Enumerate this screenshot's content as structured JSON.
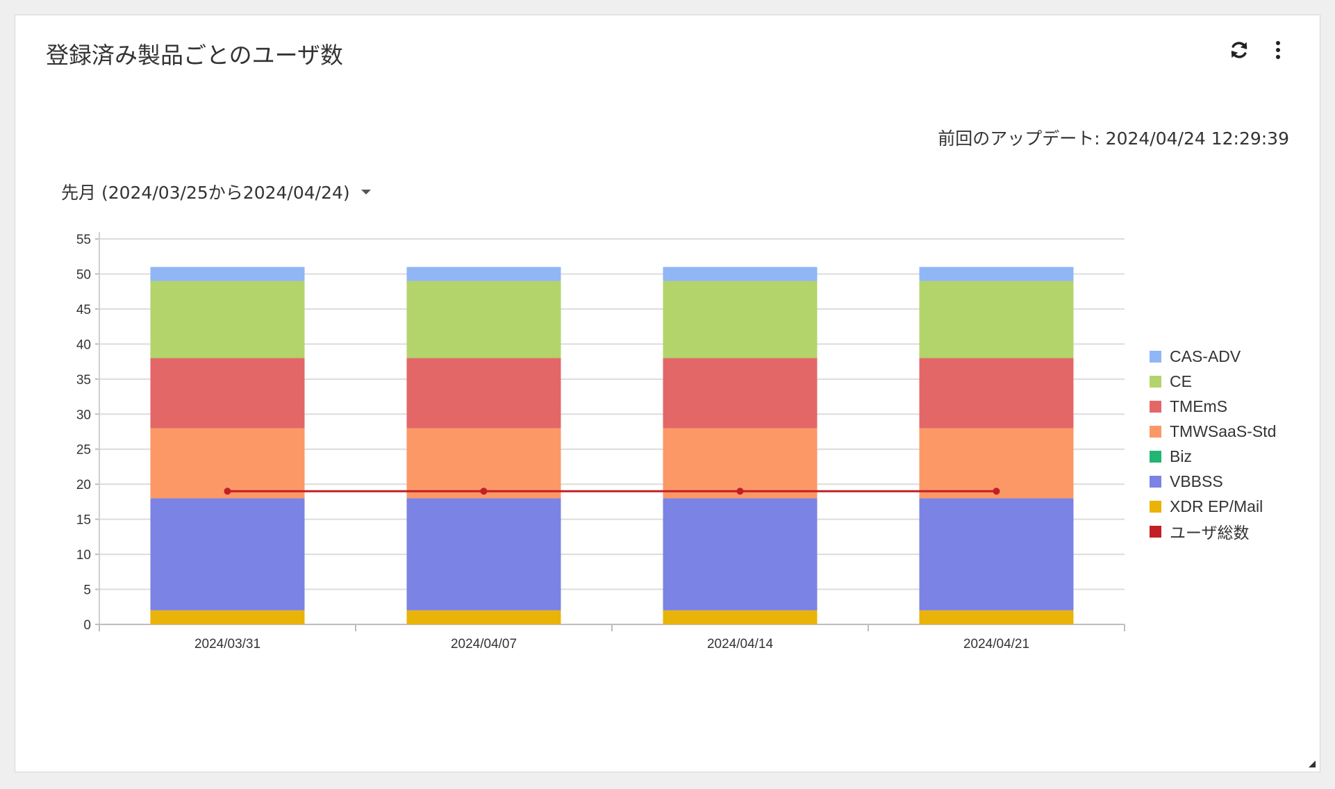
{
  "widget": {
    "title": "登録済み製品ごとのユーザ数",
    "last_updated": "前回のアップデート: 2024/04/24 12:29:39",
    "period_label": "先月 (2024/03/25から2024/04/24)",
    "icons": {
      "refresh": "refresh-icon",
      "more": "more-vertical-icon",
      "resize": "resize-handle-icon"
    }
  },
  "chart_data": {
    "type": "bar",
    "stacked": true,
    "categories": [
      "2024/03/31",
      "2024/04/07",
      "2024/04/14",
      "2024/04/21"
    ],
    "ylim": [
      0,
      55
    ],
    "yticks": [
      0,
      5,
      10,
      15,
      20,
      25,
      30,
      35,
      40,
      45,
      50,
      55
    ],
    "grid": true,
    "legend_position": "right",
    "series": [
      {
        "name": "XDR EP/Mail",
        "color": "#eab308",
        "values": [
          2,
          2,
          2,
          2
        ]
      },
      {
        "name": "VBBSS",
        "color": "#7b83e5",
        "values": [
          16,
          16,
          16,
          16
        ]
      },
      {
        "name": "Biz",
        "color": "#22b573",
        "values": [
          0,
          0,
          0,
          0
        ]
      },
      {
        "name": "TMWSaaS-Std",
        "color": "#fb9866",
        "values": [
          10,
          10,
          10,
          10
        ]
      },
      {
        "name": "TMEmS",
        "color": "#e46768",
        "values": [
          10,
          10,
          10,
          10
        ]
      },
      {
        "name": "CE",
        "color": "#b3d46b",
        "values": [
          11,
          11,
          11,
          11
        ]
      },
      {
        "name": "CAS-ADV",
        "color": "#90b6f6",
        "values": [
          2,
          2,
          2,
          2
        ]
      }
    ],
    "line_series": {
      "name": "ユーザ総数",
      "color": "#c21f26",
      "values": [
        19,
        19,
        19,
        19
      ]
    },
    "legend_order": [
      "CAS-ADV",
      "CE",
      "TMEmS",
      "TMWSaaS-Std",
      "Biz",
      "VBBSS",
      "XDR EP/Mail",
      "ユーザ総数"
    ]
  }
}
